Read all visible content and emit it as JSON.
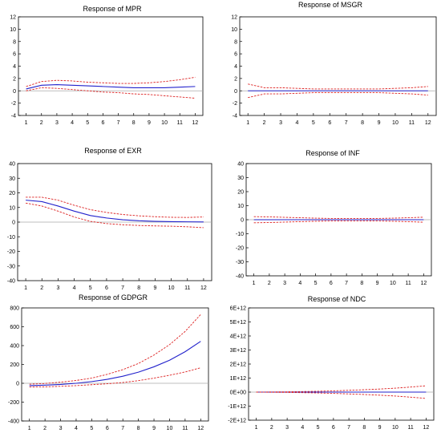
{
  "chart_data": [
    {
      "type": "line",
      "title": "Response of MPR",
      "x": [
        1,
        2,
        3,
        4,
        5,
        6,
        7,
        8,
        9,
        10,
        11,
        12
      ],
      "x_ticks": [
        "1",
        "2",
        "3",
        "4",
        "5",
        "6",
        "7",
        "8",
        "9",
        "10",
        "11",
        "12"
      ],
      "ylim": [
        -4,
        12
      ],
      "y_ticks": [
        "-4",
        "-2",
        "0",
        "2",
        "4",
        "6",
        "8",
        "10",
        "12"
      ],
      "y_tick_values": [
        -4,
        -2,
        0,
        2,
        4,
        6,
        8,
        10,
        12
      ],
      "series": [
        {
          "role": "response",
          "values": [
            0.3,
            0.9,
            1.0,
            0.9,
            0.8,
            0.7,
            0.6,
            0.5,
            0.5,
            0.5,
            0.6,
            0.7
          ]
        },
        {
          "role": "upper_band",
          "values": [
            0.7,
            1.5,
            1.7,
            1.6,
            1.4,
            1.3,
            1.2,
            1.2,
            1.3,
            1.5,
            1.8,
            2.2
          ]
        },
        {
          "role": "lower_band",
          "values": [
            0.0,
            0.5,
            0.4,
            0.2,
            0.0,
            -0.2,
            -0.3,
            -0.5,
            -0.6,
            -0.8,
            -1.0,
            -1.2
          ]
        }
      ],
      "grid": false
    },
    {
      "type": "line",
      "title": "Response of MSGR",
      "x": [
        1,
        2,
        3,
        4,
        5,
        6,
        7,
        8,
        9,
        10,
        11,
        12
      ],
      "x_ticks": [
        "1",
        "2",
        "3",
        "4",
        "5",
        "6",
        "7",
        "8",
        "9",
        "10",
        "11",
        "12"
      ],
      "ylim": [
        -4,
        12
      ],
      "y_ticks": [
        "-4",
        "-2",
        "0",
        "2",
        "4",
        "6",
        "8",
        "10",
        "12"
      ],
      "y_tick_values": [
        -4,
        -2,
        0,
        2,
        4,
        6,
        8,
        10,
        12
      ],
      "series": [
        {
          "role": "response",
          "values": [
            0.0,
            0.0,
            0.0,
            0.0,
            0.0,
            0.0,
            0.0,
            0.0,
            0.0,
            0.0,
            0.0,
            0.0
          ]
        },
        {
          "role": "upper_band",
          "values": [
            1.1,
            0.5,
            0.5,
            0.4,
            0.3,
            0.3,
            0.3,
            0.3,
            0.3,
            0.4,
            0.5,
            0.7
          ]
        },
        {
          "role": "lower_band",
          "values": [
            -1.1,
            -0.5,
            -0.5,
            -0.4,
            -0.3,
            -0.3,
            -0.3,
            -0.3,
            -0.3,
            -0.4,
            -0.5,
            -0.7
          ]
        }
      ],
      "grid": false
    },
    {
      "type": "line",
      "title": "Response of EXR",
      "x": [
        1,
        2,
        3,
        4,
        5,
        6,
        7,
        8,
        9,
        10,
        11,
        12
      ],
      "x_ticks": [
        "1",
        "2",
        "3",
        "4",
        "5",
        "6",
        "7",
        "8",
        "9",
        "10",
        "11",
        "12"
      ],
      "ylim": [
        -40,
        40
      ],
      "y_ticks": [
        "-40",
        "-30",
        "-20",
        "-10",
        "0",
        "10",
        "20",
        "30",
        "40"
      ],
      "y_tick_values": [
        -40,
        -30,
        -20,
        -10,
        0,
        10,
        20,
        30,
        40
      ],
      "series": [
        {
          "role": "response",
          "values": [
            15.0,
            14.0,
            11.0,
            7.5,
            4.5,
            2.8,
            1.6,
            0.9,
            0.5,
            0.3,
            0.2,
            0.1
          ]
        },
        {
          "role": "upper_band",
          "values": [
            17.0,
            17.0,
            15.0,
            11.5,
            8.5,
            6.6,
            5.2,
            4.3,
            3.7,
            3.3,
            3.2,
            3.5
          ]
        },
        {
          "role": "lower_band",
          "values": [
            13.0,
            11.0,
            7.5,
            3.5,
            0.5,
            -1.0,
            -1.8,
            -2.3,
            -2.6,
            -2.8,
            -3.2,
            -3.8
          ]
        }
      ],
      "grid": false
    },
    {
      "type": "line",
      "title": "Response of INF",
      "x": [
        1,
        2,
        3,
        4,
        5,
        6,
        7,
        8,
        9,
        10,
        11,
        12
      ],
      "x_ticks": [
        "1",
        "2",
        "3",
        "4",
        "5",
        "6",
        "7",
        "8",
        "9",
        "10",
        "11",
        "12"
      ],
      "ylim": [
        -40,
        40
      ],
      "y_ticks": [
        "-40",
        "-30",
        "-20",
        "-10",
        "0",
        "10",
        "20",
        "30",
        "40"
      ],
      "y_tick_values": [
        -40,
        -30,
        -20,
        -10,
        0,
        10,
        20,
        30,
        40
      ],
      "series": [
        {
          "role": "response",
          "values": [
            0.0,
            0.0,
            0.0,
            0.0,
            0.0,
            0.0,
            0.0,
            0.0,
            0.0,
            0.0,
            0.0,
            0.0
          ]
        },
        {
          "role": "upper_band",
          "values": [
            2.2,
            2.0,
            1.7,
            1.4,
            1.1,
            0.9,
            0.8,
            0.8,
            0.9,
            1.1,
            1.4,
            1.8
          ]
        },
        {
          "role": "lower_band",
          "values": [
            -2.2,
            -2.0,
            -1.7,
            -1.4,
            -1.1,
            -0.9,
            -0.8,
            -0.8,
            -0.9,
            -1.1,
            -1.4,
            -1.8
          ]
        }
      ],
      "grid": false
    },
    {
      "type": "line",
      "title": "Response of GDPGR",
      "x": [
        1,
        2,
        3,
        4,
        5,
        6,
        7,
        8,
        9,
        10,
        11,
        12
      ],
      "x_ticks": [
        "1",
        "2",
        "3",
        "4",
        "5",
        "6",
        "7",
        "8",
        "9",
        "10",
        "11",
        "12"
      ],
      "ylim": [
        -400,
        800
      ],
      "y_ticks": [
        "-400",
        "-200",
        "0",
        "200",
        "400",
        "600",
        "800"
      ],
      "y_tick_values": [
        -400,
        -200,
        0,
        200,
        400,
        600,
        800
      ],
      "series": [
        {
          "role": "response",
          "values": [
            -25,
            -20,
            -12,
            0,
            18,
            42,
            75,
            118,
            175,
            245,
            335,
            445
          ]
        },
        {
          "role": "upper_band",
          "values": [
            -10,
            -2,
            12,
            30,
            55,
            95,
            145,
            210,
            300,
            410,
            550,
            730
          ]
        },
        {
          "role": "lower_band",
          "values": [
            -40,
            -38,
            -32,
            -25,
            -15,
            -5,
            8,
            28,
            55,
            85,
            120,
            165
          ]
        }
      ],
      "grid": false
    },
    {
      "type": "line",
      "title": "Response of NDC",
      "x": [
        1,
        2,
        3,
        4,
        5,
        6,
        7,
        8,
        9,
        10,
        11,
        12
      ],
      "x_ticks": [
        "1",
        "2",
        "3",
        "4",
        "5",
        "6",
        "7",
        "8",
        "9",
        "10",
        "11",
        "12"
      ],
      "ylim": [
        -2000000000000.0,
        6000000000000.0
      ],
      "y_ticks": [
        "-2E+12",
        "-1E+12",
        "0E+00",
        "1E+12",
        "2E+12",
        "3E+12",
        "4E+12",
        "5E+12",
        "6E+12"
      ],
      "y_tick_values": [
        -2000000000000.0,
        -1000000000000.0,
        0,
        1000000000000.0,
        2000000000000.0,
        3000000000000.0,
        4000000000000.0,
        5000000000000.0,
        6000000000000.0
      ],
      "series": [
        {
          "role": "response",
          "values": [
            0,
            0,
            0,
            0,
            0,
            0,
            0,
            0,
            0,
            0,
            0,
            0
          ]
        },
        {
          "role": "upper_band",
          "values": [
            0,
            10000000000.0,
            20000000000.0,
            40000000000.0,
            60000000000.0,
            90000000000.0,
            130000000000.0,
            170000000000.0,
            220000000000.0,
            280000000000.0,
            360000000000.0,
            450000000000.0
          ]
        },
        {
          "role": "lower_band",
          "values": [
            0,
            -10000000000.0,
            -20000000000.0,
            -40000000000.0,
            -60000000000.0,
            -90000000000.0,
            -130000000000.0,
            -170000000000.0,
            -220000000000.0,
            -280000000000.0,
            -360000000000.0,
            -450000000000.0
          ]
        }
      ],
      "grid": false
    }
  ],
  "colors": {
    "response": "#2222cc",
    "band": "#dd2222",
    "zero_line": "#aaaaaa",
    "frame": "#000000",
    "text": "#000000"
  }
}
